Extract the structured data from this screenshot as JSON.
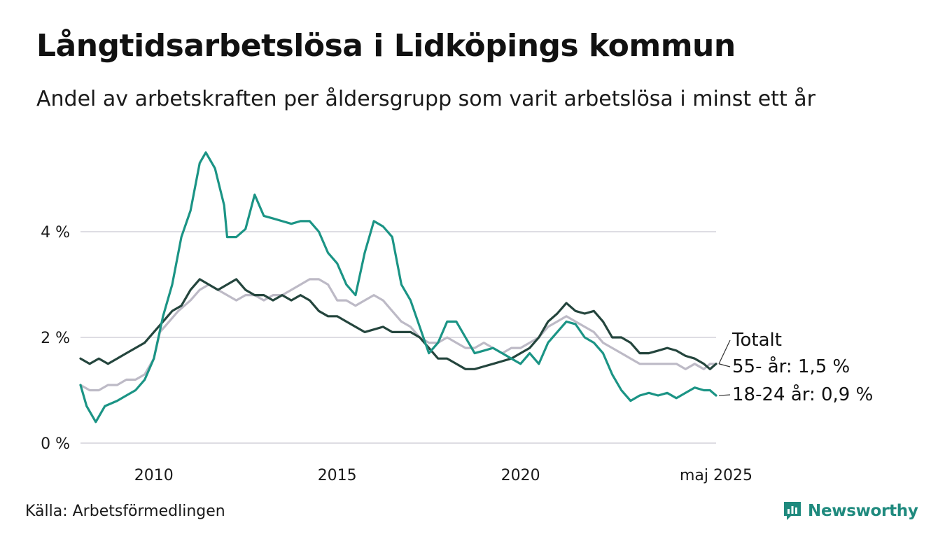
{
  "title": "Långtidsarbetslösa i Lidköpings kommun",
  "subtitle": "Andel av arbetskraften per åldersgrupp som varit arbetslösa i minst ett år",
  "source": "Källa: Arbetsförmedlingen",
  "brand": "Newsworthy",
  "chart_data": {
    "type": "line",
    "x_range": [
      "2008-01",
      "2025-05"
    ],
    "ylim": [
      0,
      6
    ],
    "y_ticks": [
      0,
      2,
      4
    ],
    "y_tick_labels": [
      "0 %",
      "2 %",
      "4 %"
    ],
    "x_ticks": [
      "2010-01",
      "2015-01",
      "2020-01",
      "2025-05"
    ],
    "x_tick_labels": [
      "2010",
      "2015",
      "2020",
      "maj 2025"
    ],
    "grid": "horizontal",
    "series": [
      {
        "name": "Totalt",
        "color": "#bdbac6",
        "points": [
          [
            "2008-01",
            1.1
          ],
          [
            "2008-04",
            1.0
          ],
          [
            "2008-07",
            1.0
          ],
          [
            "2008-10",
            1.1
          ],
          [
            "2009-01",
            1.1
          ],
          [
            "2009-04",
            1.2
          ],
          [
            "2009-07",
            1.2
          ],
          [
            "2009-10",
            1.3
          ],
          [
            "2010-01",
            1.6
          ],
          [
            "2010-03",
            2.1
          ],
          [
            "2010-06",
            2.3
          ],
          [
            "2010-09",
            2.5
          ],
          [
            "2011-01",
            2.7
          ],
          [
            "2011-04",
            2.9
          ],
          [
            "2011-07",
            3.0
          ],
          [
            "2011-10",
            2.9
          ],
          [
            "2012-01",
            2.8
          ],
          [
            "2012-04",
            2.7
          ],
          [
            "2012-07",
            2.8
          ],
          [
            "2012-10",
            2.8
          ],
          [
            "2013-01",
            2.7
          ],
          [
            "2013-04",
            2.8
          ],
          [
            "2013-07",
            2.8
          ],
          [
            "2013-10",
            2.9
          ],
          [
            "2014-01",
            3.0
          ],
          [
            "2014-04",
            3.1
          ],
          [
            "2014-07",
            3.1
          ],
          [
            "2014-10",
            3.0
          ],
          [
            "2015-01",
            2.7
          ],
          [
            "2015-04",
            2.7
          ],
          [
            "2015-07",
            2.6
          ],
          [
            "2015-10",
            2.7
          ],
          [
            "2016-01",
            2.8
          ],
          [
            "2016-04",
            2.7
          ],
          [
            "2016-07",
            2.5
          ],
          [
            "2016-10",
            2.3
          ],
          [
            "2017-01",
            2.2
          ],
          [
            "2017-04",
            2.0
          ],
          [
            "2017-07",
            1.9
          ],
          [
            "2017-10",
            1.9
          ],
          [
            "2018-01",
            2.0
          ],
          [
            "2018-04",
            1.9
          ],
          [
            "2018-07",
            1.8
          ],
          [
            "2018-10",
            1.8
          ],
          [
            "2019-01",
            1.9
          ],
          [
            "2019-04",
            1.8
          ],
          [
            "2019-07",
            1.7
          ],
          [
            "2019-10",
            1.8
          ],
          [
            "2020-01",
            1.8
          ],
          [
            "2020-04",
            1.9
          ],
          [
            "2020-07",
            2.0
          ],
          [
            "2020-10",
            2.2
          ],
          [
            "2021-01",
            2.3
          ],
          [
            "2021-04",
            2.4
          ],
          [
            "2021-07",
            2.3
          ],
          [
            "2021-10",
            2.2
          ],
          [
            "2022-01",
            2.1
          ],
          [
            "2022-04",
            1.9
          ],
          [
            "2022-07",
            1.8
          ],
          [
            "2022-10",
            1.7
          ],
          [
            "2023-01",
            1.6
          ],
          [
            "2023-04",
            1.5
          ],
          [
            "2023-07",
            1.5
          ],
          [
            "2023-10",
            1.5
          ],
          [
            "2024-01",
            1.5
          ],
          [
            "2024-04",
            1.5
          ],
          [
            "2024-07",
            1.4
          ],
          [
            "2024-10",
            1.5
          ],
          [
            "2025-01",
            1.4
          ],
          [
            "2025-03",
            1.5
          ],
          [
            "2025-05",
            1.5
          ]
        ]
      },
      {
        "name": "55- år: 1,5 %",
        "color": "#24453d",
        "points": [
          [
            "2008-01",
            1.6
          ],
          [
            "2008-04",
            1.5
          ],
          [
            "2008-07",
            1.6
          ],
          [
            "2008-10",
            1.5
          ],
          [
            "2009-01",
            1.6
          ],
          [
            "2009-04",
            1.7
          ],
          [
            "2009-07",
            1.8
          ],
          [
            "2009-10",
            1.9
          ],
          [
            "2010-01",
            2.1
          ],
          [
            "2010-04",
            2.3
          ],
          [
            "2010-07",
            2.5
          ],
          [
            "2010-10",
            2.6
          ],
          [
            "2011-01",
            2.9
          ],
          [
            "2011-04",
            3.1
          ],
          [
            "2011-07",
            3.0
          ],
          [
            "2011-10",
            2.9
          ],
          [
            "2012-01",
            3.0
          ],
          [
            "2012-04",
            3.1
          ],
          [
            "2012-07",
            2.9
          ],
          [
            "2012-10",
            2.8
          ],
          [
            "2013-01",
            2.8
          ],
          [
            "2013-04",
            2.7
          ],
          [
            "2013-07",
            2.8
          ],
          [
            "2013-10",
            2.7
          ],
          [
            "2014-01",
            2.8
          ],
          [
            "2014-04",
            2.7
          ],
          [
            "2014-07",
            2.5
          ],
          [
            "2014-10",
            2.4
          ],
          [
            "2015-01",
            2.4
          ],
          [
            "2015-04",
            2.3
          ],
          [
            "2015-07",
            2.2
          ],
          [
            "2015-10",
            2.1
          ],
          [
            "2016-01",
            2.15
          ],
          [
            "2016-04",
            2.2
          ],
          [
            "2016-07",
            2.1
          ],
          [
            "2016-10",
            2.1
          ],
          [
            "2017-01",
            2.1
          ],
          [
            "2017-04",
            2.0
          ],
          [
            "2017-07",
            1.8
          ],
          [
            "2017-10",
            1.6
          ],
          [
            "2018-01",
            1.6
          ],
          [
            "2018-04",
            1.5
          ],
          [
            "2018-07",
            1.4
          ],
          [
            "2018-10",
            1.4
          ],
          [
            "2019-01",
            1.45
          ],
          [
            "2019-04",
            1.5
          ],
          [
            "2019-07",
            1.55
          ],
          [
            "2019-10",
            1.6
          ],
          [
            "2020-01",
            1.7
          ],
          [
            "2020-04",
            1.8
          ],
          [
            "2020-07",
            2.0
          ],
          [
            "2020-10",
            2.3
          ],
          [
            "2021-01",
            2.45
          ],
          [
            "2021-04",
            2.65
          ],
          [
            "2021-07",
            2.5
          ],
          [
            "2021-10",
            2.45
          ],
          [
            "2022-01",
            2.5
          ],
          [
            "2022-04",
            2.3
          ],
          [
            "2022-07",
            2.0
          ],
          [
            "2022-10",
            2.0
          ],
          [
            "2023-01",
            1.9
          ],
          [
            "2023-04",
            1.7
          ],
          [
            "2023-07",
            1.7
          ],
          [
            "2023-10",
            1.75
          ],
          [
            "2024-01",
            1.8
          ],
          [
            "2024-04",
            1.75
          ],
          [
            "2024-07",
            1.65
          ],
          [
            "2024-10",
            1.6
          ],
          [
            "2025-01",
            1.5
          ],
          [
            "2025-03",
            1.4
          ],
          [
            "2025-05",
            1.5
          ]
        ]
      },
      {
        "name": "18-24 år: 0,9 %",
        "color": "#1b9485",
        "points": [
          [
            "2008-01",
            1.1
          ],
          [
            "2008-03",
            0.7
          ],
          [
            "2008-06",
            0.4
          ],
          [
            "2008-09",
            0.7
          ],
          [
            "2009-01",
            0.8
          ],
          [
            "2009-04",
            0.9
          ],
          [
            "2009-07",
            1.0
          ],
          [
            "2009-10",
            1.2
          ],
          [
            "2010-01",
            1.6
          ],
          [
            "2010-04",
            2.4
          ],
          [
            "2010-07",
            3.0
          ],
          [
            "2010-10",
            3.9
          ],
          [
            "2011-01",
            4.4
          ],
          [
            "2011-04",
            5.3
          ],
          [
            "2011-06",
            5.5
          ],
          [
            "2011-09",
            5.2
          ],
          [
            "2011-12",
            4.5
          ],
          [
            "2012-01",
            3.9
          ],
          [
            "2012-04",
            3.9
          ],
          [
            "2012-07",
            4.05
          ],
          [
            "2012-10",
            4.7
          ],
          [
            "2013-01",
            4.3
          ],
          [
            "2013-04",
            4.25
          ],
          [
            "2013-07",
            4.2
          ],
          [
            "2013-10",
            4.15
          ],
          [
            "2014-01",
            4.2
          ],
          [
            "2014-04",
            4.2
          ],
          [
            "2014-07",
            4.0
          ],
          [
            "2014-10",
            3.6
          ],
          [
            "2015-01",
            3.4
          ],
          [
            "2015-04",
            3.0
          ],
          [
            "2015-07",
            2.8
          ],
          [
            "2015-10",
            3.6
          ],
          [
            "2016-01",
            4.2
          ],
          [
            "2016-04",
            4.1
          ],
          [
            "2016-07",
            3.9
          ],
          [
            "2016-10",
            3.0
          ],
          [
            "2017-01",
            2.7
          ],
          [
            "2017-04",
            2.2
          ],
          [
            "2017-07",
            1.7
          ],
          [
            "2017-10",
            1.9
          ],
          [
            "2018-01",
            2.3
          ],
          [
            "2018-04",
            2.3
          ],
          [
            "2018-07",
            2.0
          ],
          [
            "2018-10",
            1.7
          ],
          [
            "2019-01",
            1.75
          ],
          [
            "2019-04",
            1.8
          ],
          [
            "2019-07",
            1.7
          ],
          [
            "2019-10",
            1.6
          ],
          [
            "2020-01",
            1.5
          ],
          [
            "2020-04",
            1.7
          ],
          [
            "2020-07",
            1.5
          ],
          [
            "2020-10",
            1.9
          ],
          [
            "2021-01",
            2.1
          ],
          [
            "2021-04",
            2.3
          ],
          [
            "2021-07",
            2.25
          ],
          [
            "2021-10",
            2.0
          ],
          [
            "2022-01",
            1.9
          ],
          [
            "2022-04",
            1.7
          ],
          [
            "2022-07",
            1.3
          ],
          [
            "2022-10",
            1.0
          ],
          [
            "2023-01",
            0.8
          ],
          [
            "2023-04",
            0.9
          ],
          [
            "2023-07",
            0.95
          ],
          [
            "2023-10",
            0.9
          ],
          [
            "2024-01",
            0.95
          ],
          [
            "2024-04",
            0.85
          ],
          [
            "2024-07",
            0.95
          ],
          [
            "2024-10",
            1.05
          ],
          [
            "2025-01",
            1.0
          ],
          [
            "2025-03",
            1.0
          ],
          [
            "2025-05",
            0.9
          ]
        ]
      }
    ]
  }
}
